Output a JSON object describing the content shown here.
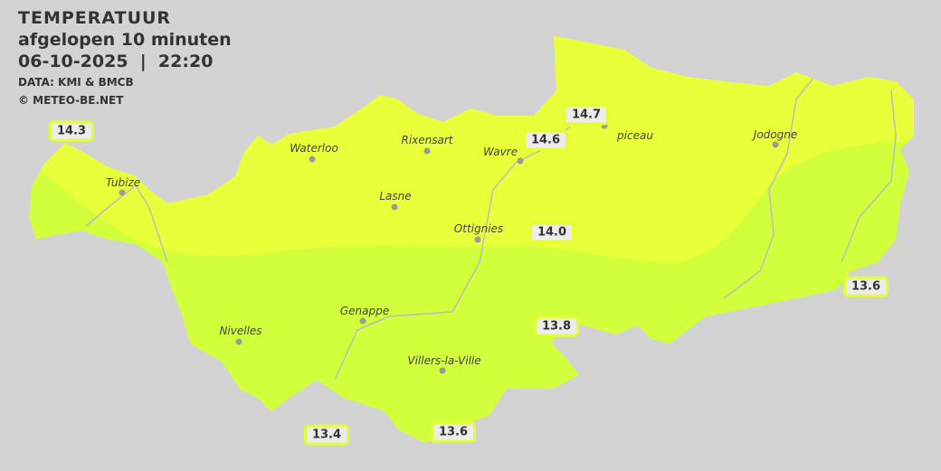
{
  "header": {
    "title": "TEMPERATUUR",
    "subtitle": "afgelopen 10 minuten",
    "datetime": "06-10-2025  |  22:20",
    "source": "DATA: KMI & BMCB",
    "copyright": "© METEO-BE.NET"
  },
  "colors": {
    "background": "#d3d3d3",
    "zone_14_plus": "#e8ff3a",
    "zone_below_14": "#d2ff3c",
    "label_border": "#e4ff2e"
  },
  "towns": [
    {
      "name": "Waterloo"
    },
    {
      "name": "Rixensart"
    },
    {
      "name": "Wavre"
    },
    {
      "name": "piceau"
    },
    {
      "name": "Jodogne"
    },
    {
      "name": "Tubize"
    },
    {
      "name": "Lasne"
    },
    {
      "name": "Ottignies"
    },
    {
      "name": "Genappe"
    },
    {
      "name": "Nivelles"
    },
    {
      "name": "Villers-la-Ville"
    }
  ],
  "temperatures": [
    "14.3",
    "14.7",
    "14.6",
    "14.0",
    "13.6",
    "13.8",
    "13.4",
    "13.6"
  ]
}
